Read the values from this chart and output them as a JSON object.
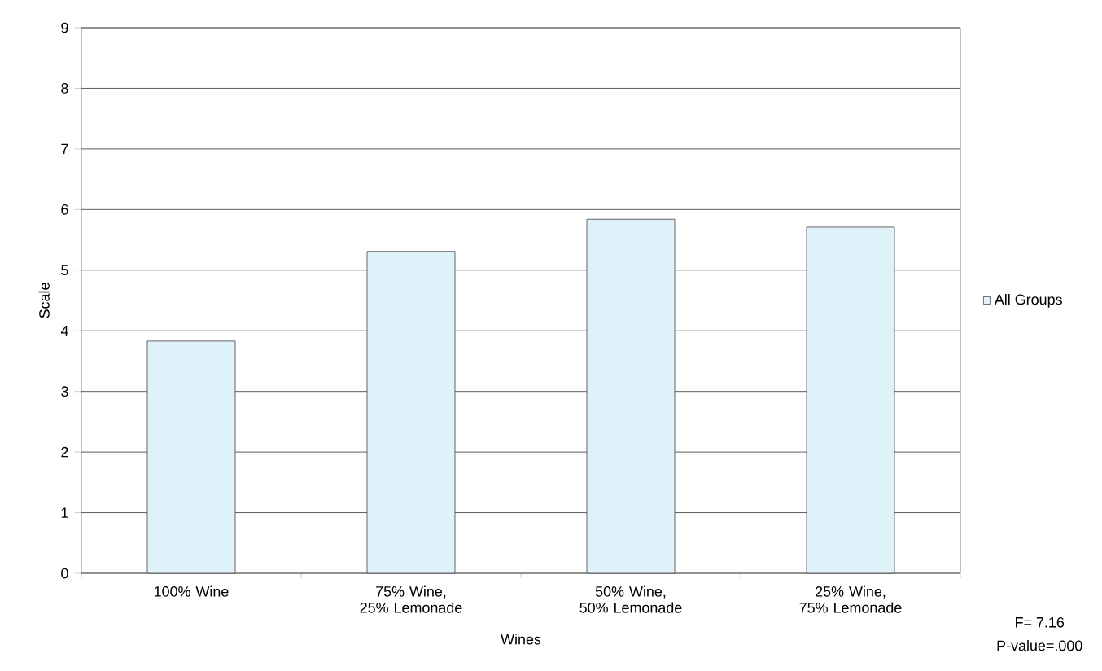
{
  "chart_data": {
    "type": "bar",
    "xlabel": "Wines",
    "ylabel": "Scale",
    "categories": [
      "100% Wine",
      "75% Wine, 25% Lemonade",
      "50% Wine, 50% Lemonade",
      "25% Wine, 75% Lemonade"
    ],
    "series": [
      {
        "name": "All Groups",
        "color": "#dff1f9",
        "values": [
          3.83,
          5.31,
          5.84,
          5.71
        ]
      }
    ],
    "ylim": [
      0,
      9
    ],
    "yticks": [
      0,
      1,
      2,
      3,
      4,
      5,
      6,
      7,
      8,
      9
    ],
    "grid": "y",
    "legend": "right",
    "annotations": [
      "F= 7.16",
      "P-value=.000"
    ]
  }
}
